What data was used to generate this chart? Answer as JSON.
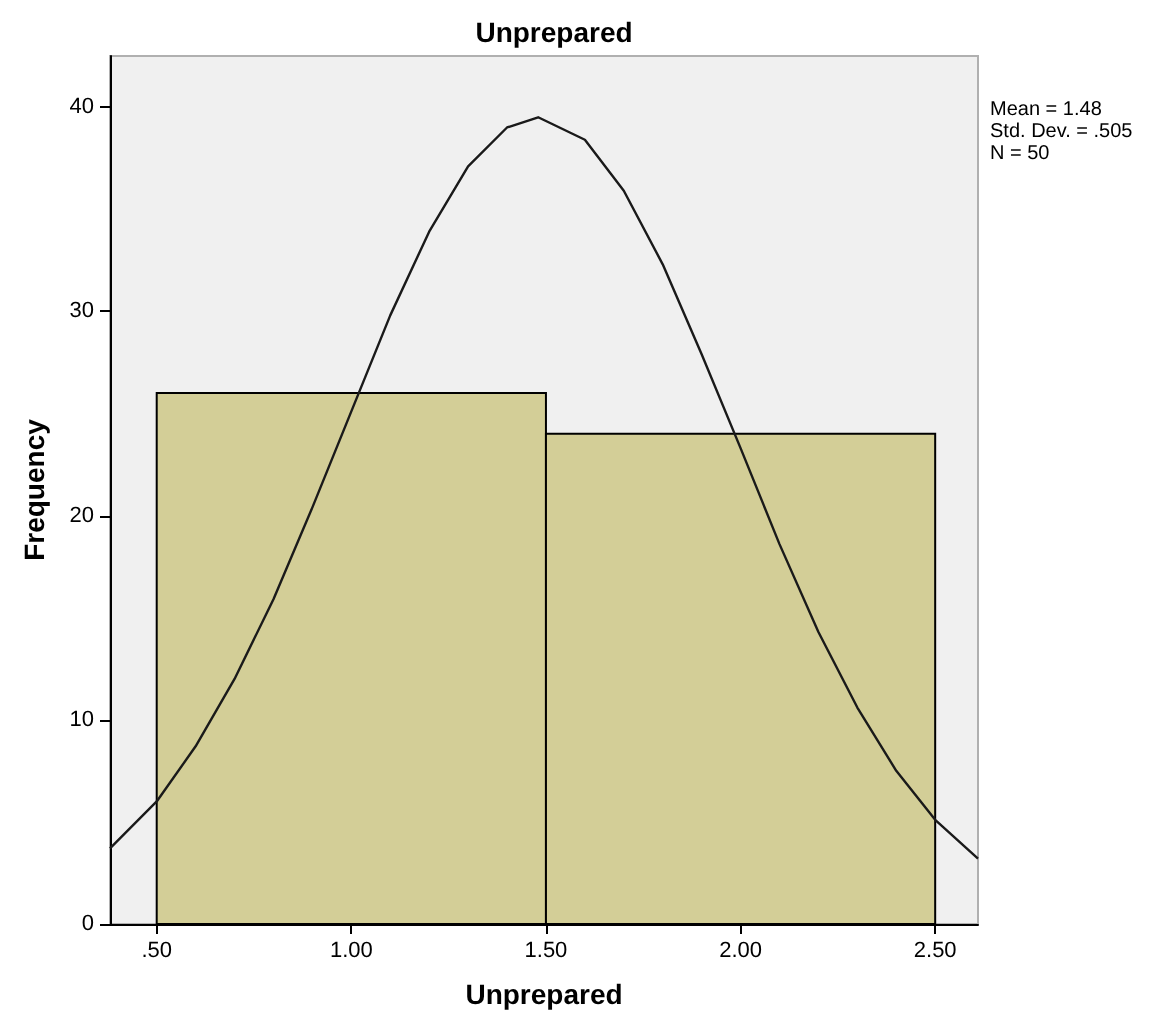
{
  "chart_data": {
    "type": "histogram",
    "title": "Unprepared",
    "xlabel": "Unprepared",
    "ylabel": "Frequency",
    "bins": [
      0.5,
      1.5,
      2.5
    ],
    "values": [
      26,
      24
    ],
    "color": "#d3ce97",
    "series": [
      {
        "type": "line",
        "color": "#1a1a1a",
        "x": [
          0.38,
          0.5,
          0.6,
          0.7,
          0.8,
          0.9,
          1.0,
          1.1,
          1.2,
          1.3,
          1.4,
          1.48,
          1.6,
          1.7,
          1.8,
          1.9,
          2.0,
          2.1,
          2.2,
          2.3,
          2.4,
          2.5,
          2.61
        ],
        "values": [
          3.7,
          6.0,
          8.7,
          12.0,
          15.9,
          20.4,
          25.1,
          29.8,
          33.9,
          37.1,
          39.0,
          39.5,
          38.4,
          35.9,
          32.3,
          27.9,
          23.3,
          18.6,
          14.3,
          10.6,
          7.5,
          5.1,
          3.2
        ]
      }
    ],
    "xlim": [
      0.38,
      2.61
    ],
    "xticks": [
      {
        "value": 0.5,
        "label": ".50"
      },
      {
        "value": 1.0,
        "label": "1.00"
      },
      {
        "value": 1.5,
        "label": "1.50"
      },
      {
        "value": 2.0,
        "label": "2.00"
      },
      {
        "value": 2.5,
        "label": "2.50"
      }
    ],
    "ylim": [
      0,
      42.5
    ],
    "yticks": [
      0,
      10,
      20,
      30,
      40
    ],
    "grid": false,
    "marker": "none",
    "line_style": "solid",
    "annotations": [
      "Mean = 1.48",
      "Std. Dev. = .505",
      "N = 50"
    ]
  }
}
